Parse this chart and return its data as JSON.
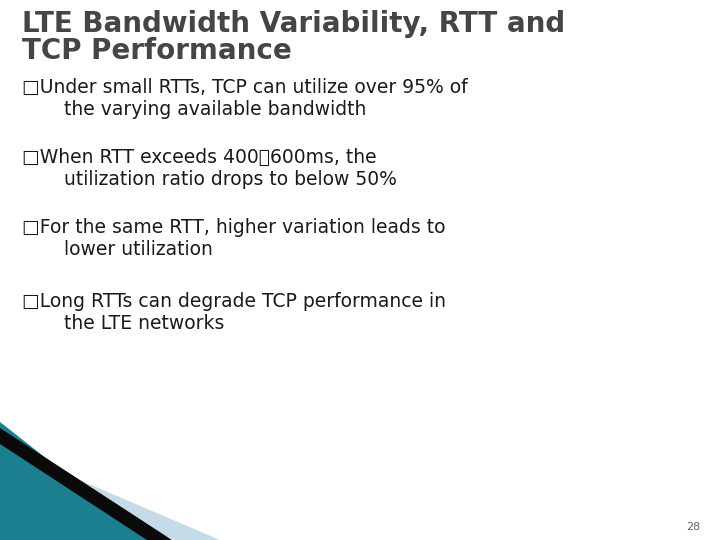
{
  "title_line1": "LTE Bandwidth Variability, RTT and",
  "title_line2": "TCP Performance",
  "title_color": "#454545",
  "title_fontsize": 20,
  "bullet_char": "□",
  "bullets": [
    [
      "Under small RTTs, TCP can utilize over 95% of",
      "  the varying available bandwidth"
    ],
    [
      "When RTT exceeds 400～600ms, the",
      "  utilization ratio drops to below 50%"
    ],
    [
      "For the same RTT, higher variation leads to",
      "  lower utilization"
    ],
    [
      "Long RTTs can degrade TCP performance in",
      "  the LTE networks"
    ]
  ],
  "bullet_fontsize": 13.5,
  "bullet_color": "#1a1a1a",
  "background_color": "#ffffff",
  "page_number": "28",
  "page_number_fontsize": 8,
  "page_number_color": "#666666",
  "teal_color": "#1b7f90",
  "light_blue_color": "#c5dce8",
  "black_stripe_color": "#0a0a0a"
}
